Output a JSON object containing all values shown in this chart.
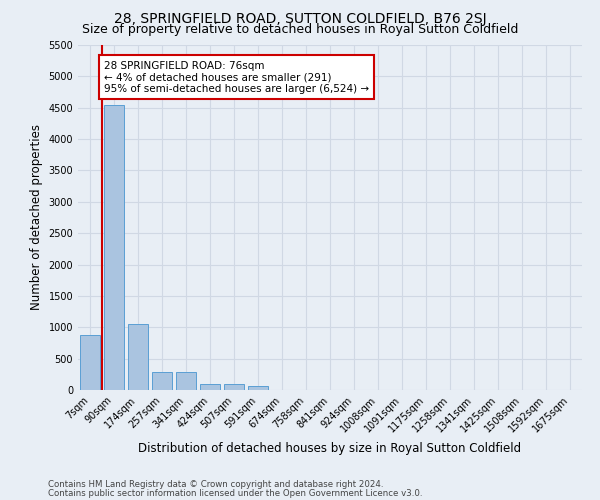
{
  "title": "28, SPRINGFIELD ROAD, SUTTON COLDFIELD, B76 2SJ",
  "subtitle": "Size of property relative to detached houses in Royal Sutton Coldfield",
  "xlabel": "Distribution of detached houses by size in Royal Sutton Coldfield",
  "ylabel": "Number of detached properties",
  "footnote1": "Contains HM Land Registry data © Crown copyright and database right 2024.",
  "footnote2": "Contains public sector information licensed under the Open Government Licence v3.0.",
  "bin_labels": [
    "7sqm",
    "90sqm",
    "174sqm",
    "257sqm",
    "341sqm",
    "424sqm",
    "507sqm",
    "591sqm",
    "674sqm",
    "758sqm",
    "841sqm",
    "924sqm",
    "1008sqm",
    "1091sqm",
    "1175sqm",
    "1258sqm",
    "1341sqm",
    "1425sqm",
    "1508sqm",
    "1592sqm",
    "1675sqm"
  ],
  "bar_heights": [
    880,
    4540,
    1050,
    280,
    280,
    95,
    95,
    70,
    0,
    0,
    0,
    0,
    0,
    0,
    0,
    0,
    0,
    0,
    0,
    0,
    0
  ],
  "bar_color": "#aac4e0",
  "bar_edge_color": "#5a9fd4",
  "red_line_color": "#cc0000",
  "annotation_text": "28 SPRINGFIELD ROAD: 76sqm\n← 4% of detached houses are smaller (291)\n95% of semi-detached houses are larger (6,524) →",
  "annotation_box_color": "#ffffff",
  "annotation_box_edge_color": "#cc0000",
  "ylim": [
    0,
    5500
  ],
  "yticks": [
    0,
    500,
    1000,
    1500,
    2000,
    2500,
    3000,
    3500,
    4000,
    4500,
    5000,
    5500
  ],
  "background_color": "#e8eef5",
  "grid_color": "#d0d8e4",
  "title_fontsize": 10,
  "subtitle_fontsize": 9,
  "axis_label_fontsize": 8.5,
  "tick_fontsize": 7,
  "annotation_fontsize": 7.5,
  "footnote_fontsize": 6.2
}
